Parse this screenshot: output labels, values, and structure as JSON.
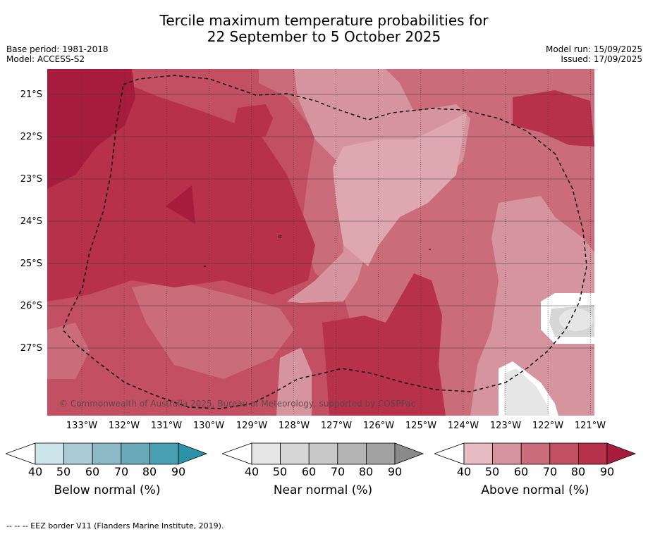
{
  "title_line1": "Tercile maximum temperature probabilities for",
  "title_line2": "22 September to 5 October 2025",
  "base_period": "Base period: 1981-2018",
  "model": "Model: ACCESS-S2",
  "model_run": "Model run: 15/09/2025",
  "issued": "Issued: 17/09/2025",
  "copyright": "© Commonwealth of Australia 2025, Bureau of Meteorology, supported by COSPPac",
  "latitudes": [
    "21°S",
    "22°S",
    "23°S",
    "24°S",
    "25°S",
    "26°S",
    "27°S"
  ],
  "longitudes": [
    "133°W",
    "132°W",
    "131°W",
    "130°W",
    "129°W",
    "128°W",
    "127°W",
    "126°W",
    "125°W",
    "124°W",
    "123°W",
    "122°W",
    "121°W"
  ],
  "legends": {
    "below": {
      "caption": "Below normal (%)",
      "ticks": [
        "40",
        "50",
        "60",
        "70",
        "80",
        "90"
      ],
      "colors": [
        "#cde4ea",
        "#aacbd3",
        "#8cb9c5",
        "#6aa9b9",
        "#48a0b2",
        "#2a93a8"
      ]
    },
    "near": {
      "caption": "Near normal (%)",
      "ticks": [
        "40",
        "50",
        "60",
        "70",
        "80",
        "90"
      ],
      "colors": [
        "#e6e6e6",
        "#d6d6d6",
        "#c8c8c8",
        "#b4b4b4",
        "#a2a2a2",
        "#8a8a8a"
      ]
    },
    "above": {
      "caption": "Above normal (%)",
      "ticks": [
        "40",
        "50",
        "60",
        "70",
        "80",
        "90"
      ],
      "colors": [
        "#e6bcc2",
        "#d6949e",
        "#cb6c7a",
        "#c24f62",
        "#b7314a",
        "#a71c3c"
      ]
    }
  },
  "map_colors": {
    "above_50": "#d6949e",
    "above_60": "#cb6c7a",
    "above_70": "#c24f62",
    "above_80": "#b7314a",
    "above_90": "#a71c3c",
    "near_40": "#e6e6e6",
    "near_50": "#d6d6d6"
  },
  "footnote": "--  --  -- EEZ border V11 (Flanders Marine Institute, 2019)."
}
